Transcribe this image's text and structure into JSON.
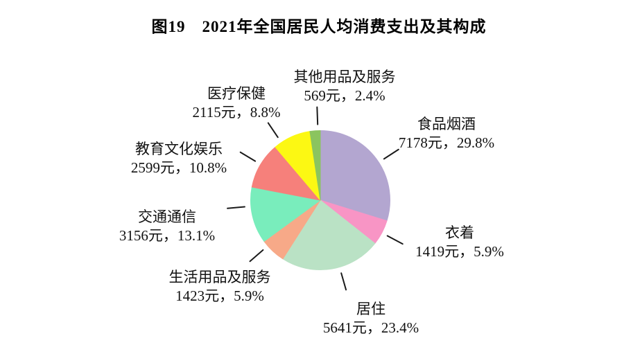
{
  "page": {
    "background": "#ffffff",
    "text_color": "#111111"
  },
  "chart_data": {
    "type": "pie",
    "title": "图19　2021年全国居民人均消费支出及其构成",
    "unit": "元",
    "direction": "clockwise",
    "start_angle_deg": 0,
    "legend": "none",
    "grid": "off",
    "leader_line_color": "#1a1a1a",
    "slices": [
      {
        "name": "食品烟酒",
        "value": 7178,
        "pct": 29.8,
        "value_label": "7178元，29.8%",
        "color": "#b3a6d0",
        "leader_angle": 57
      },
      {
        "name": "衣着",
        "value": 1419,
        "pct": 5.9,
        "value_label": "1419元，5.9%",
        "color": "#f895c5",
        "leader_angle": 118
      },
      {
        "name": "居住",
        "value": 5641,
        "pct": 23.4,
        "value_label": "5641元，23.4%",
        "color": "#bae2c5",
        "leader_angle": 164
      },
      {
        "name": "生活用品及服务",
        "value": 1423,
        "pct": 5.9,
        "value_label": "1423元，5.9%",
        "color": "#f7a988",
        "leader_angle": 229
      },
      {
        "name": "交通通信",
        "value": 3156,
        "pct": 13.1,
        "value_label": "3156元，13.1%",
        "color": "#79edbc",
        "leader_angle": 265
      },
      {
        "name": "教育文化娱乐",
        "value": 2599,
        "pct": 10.8,
        "value_label": "2599元，10.8%",
        "color": "#f6807b",
        "leader_angle": 301
      },
      {
        "name": "医疗保健",
        "value": 2115,
        "pct": 8.8,
        "value_label": "2115元，8.8%",
        "color": "#fcf813",
        "leader_angle": 326
      },
      {
        "name": "其他用品及服务",
        "value": 569,
        "pct": 2.4,
        "value_label": "569元，2.4%",
        "color": "#8bc45f",
        "leader_angle": 358
      }
    ]
  }
}
